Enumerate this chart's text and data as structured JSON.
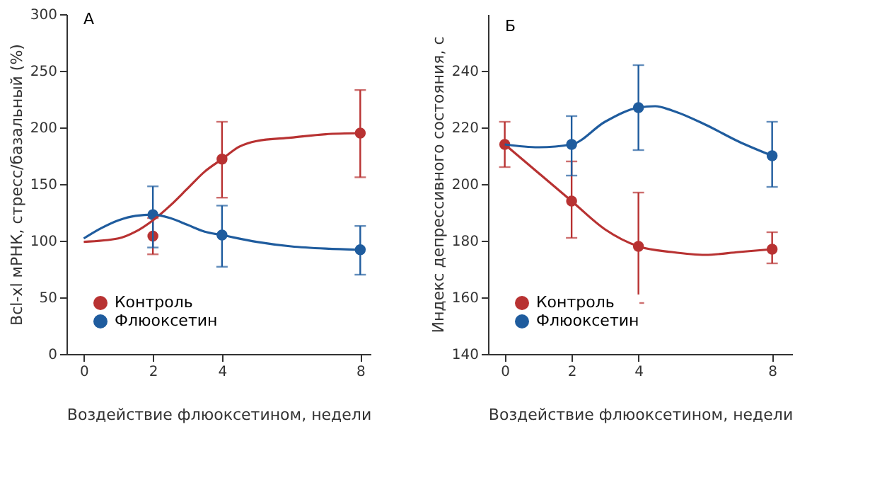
{
  "chart_data": [
    {
      "type": "scatter",
      "title": "А",
      "xlabel": "Воздействие флюоксетином, недели",
      "ylabel": "Bcl-xl мРНК, стресс/базальный (%)",
      "xlim": [
        -0.5,
        8.3
      ],
      "xticks": [
        0,
        2,
        4,
        8
      ],
      "ylim": [
        0,
        300
      ],
      "yticks": [
        0,
        50,
        100,
        150,
        200,
        250,
        300
      ],
      "grid": false,
      "legend": "bottom left",
      "marker": "circle",
      "series": [
        {
          "name": "Контроль",
          "color": "#b83232",
          "x": [
            2,
            4,
            8
          ],
          "values": [
            104,
            172,
            195
          ],
          "errors": [
            [
              88,
              120
            ],
            [
              138,
              205
            ],
            [
              156,
              233
            ]
          ]
        },
        {
          "name": "Флюоксетин",
          "color": "#1f5c9e",
          "x": [
            2,
            4,
            8
          ],
          "values": [
            123,
            105,
            92
          ],
          "errors": [
            [
              94,
              148
            ],
            [
              77,
              131
            ],
            [
              70,
              113
            ]
          ]
        },
        {
          "type": "line",
          "marker": "none",
          "color": "#b83232",
          "x": [
            0,
            1,
            1.5,
            2,
            2.5,
            3,
            3.5,
            4,
            4.5,
            5,
            6,
            7,
            8
          ],
          "values": [
            99,
            102,
            108,
            118,
            131,
            146,
            161,
            172,
            183,
            188,
            191,
            194,
            195
          ]
        },
        {
          "type": "line",
          "marker": "none",
          "color": "#1f5c9e",
          "x": [
            0,
            0.5,
            1,
            1.5,
            2,
            2.5,
            3,
            3.5,
            4,
            5,
            6,
            7,
            8
          ],
          "values": [
            102,
            111,
            118,
            122,
            123,
            120,
            114,
            108,
            105,
            99,
            95,
            93,
            92
          ]
        }
      ]
    },
    {
      "type": "scatter",
      "title": "Б",
      "xlabel": "Воздействие флюоксетином, недели",
      "ylabel": "Индекс депрессивного состояния, с",
      "xlim": [
        -0.5,
        8.6
      ],
      "xticks": [
        0,
        2,
        4,
        8
      ],
      "ylim": [
        140,
        260
      ],
      "yticks": [
        140,
        160,
        180,
        200,
        220,
        240
      ],
      "grid": false,
      "legend": "bottom left",
      "marker": "circle",
      "series": [
        {
          "name": "Контроль",
          "color": "#b83232",
          "x": [
            0,
            2,
            4,
            8
          ],
          "values": [
            214,
            194,
            178,
            177
          ],
          "errors": [
            [
              206,
              222
            ],
            [
              181,
              208
            ],
            [
              158,
              197
            ],
            [
              172,
              183
            ]
          ]
        },
        {
          "name": "Флюоксетин",
          "color": "#1f5c9e",
          "x": [
            2,
            4,
            8
          ],
          "values": [
            214,
            227,
            210
          ],
          "errors": [
            [
              203,
              224
            ],
            [
              212,
              242
            ],
            [
              199,
              222
            ]
          ]
        },
        {
          "type": "line",
          "marker": "none",
          "color": "#b83232",
          "x": [
            0,
            1,
            2,
            3,
            4,
            5,
            6,
            7,
            8
          ],
          "values": [
            214,
            204,
            194,
            184,
            178,
            176,
            175,
            176,
            177
          ]
        },
        {
          "type": "line",
          "marker": "none",
          "color": "#1f5c9e",
          "x": [
            0,
            1,
            2,
            3,
            4,
            4.5,
            5,
            6,
            7,
            8
          ],
          "values": [
            214,
            213,
            214,
            222,
            227,
            227.5,
            226,
            221,
            215,
            210
          ]
        }
      ]
    }
  ]
}
